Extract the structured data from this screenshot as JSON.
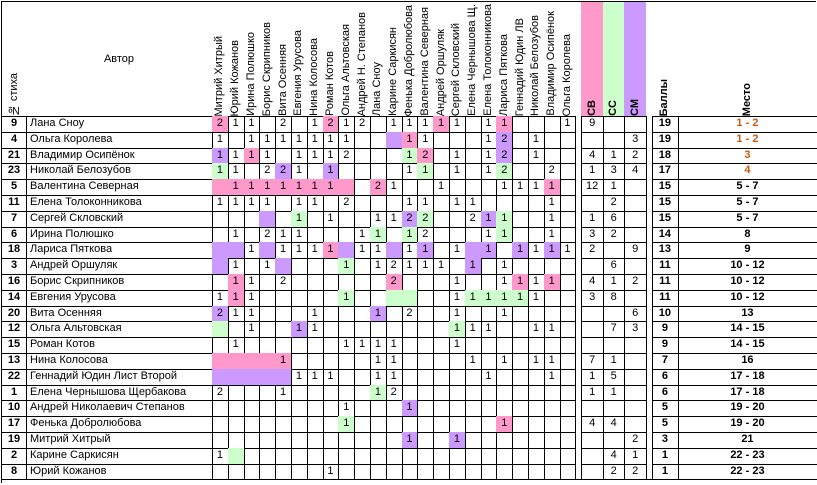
{
  "header": {
    "num": "№ стиха",
    "author": "Автор",
    "judges": [
      "Митрий Хитрый",
      "Юрий Кожанов",
      "Ирина Полюшко",
      "Борис Скрипников",
      "Вита Осенняя",
      "Евгения Урусова",
      "Нина Колосова",
      "Роман Котов",
      "Ольга Альтовская",
      "Андрей Н. Степанов",
      "Лана Сноу",
      "Карине Саркисян",
      "Фенька Добролюбова",
      "Валентина Северная",
      "Андрей Оршуляк",
      "Сергей Скловский",
      "Елена Чернышова Щ.",
      "Елена Толоконникова",
      "Лариса Пяткова",
      "Геннадий Юдин ЛВ",
      "Николай Белозубов",
      "Владимир Осипёнок",
      "Ольга Королева"
    ],
    "sv": "СВ",
    "ss": "СС",
    "sm": "СМ",
    "score": "Баллы",
    "place": "Место"
  },
  "colors": {
    "pink": "#ff99cc",
    "green": "#ccffcc",
    "purple": "#cc99ff",
    "place_top": "#c55a11"
  },
  "rows": [
    {
      "num": "9",
      "name": "Лана Сноу",
      "v": [
        "2",
        "1",
        "1",
        "",
        "2",
        "",
        "1",
        "2",
        "1",
        "2",
        "",
        "1",
        "1",
        "1",
        "1",
        "1",
        "",
        "1",
        "1",
        "",
        "",
        "",
        "1"
      ],
      "c": [
        "p",
        "",
        "",
        "",
        "",
        "",
        "",
        "p",
        "",
        "",
        "",
        "",
        "",
        "",
        "p",
        "",
        "",
        "",
        "p",
        "",
        "",
        "",
        ""
      ],
      "sv": "9",
      "ss": "",
      "sm": "",
      "score": "19",
      "place": "1 - 2",
      "pc": "top"
    },
    {
      "num": "4",
      "name": "Ольга Королева",
      "v": [
        "1",
        "",
        "1",
        "1",
        "1",
        "1",
        "1",
        "1",
        "1",
        "",
        "",
        "",
        "1",
        "1",
        "",
        "",
        "",
        "1",
        "2",
        "",
        "1",
        "",
        ""
      ],
      "c": [
        "",
        "",
        "",
        "",
        "",
        "",
        "",
        "",
        "",
        "",
        "",
        "u",
        "p",
        "",
        "",
        "",
        "",
        "",
        "u",
        "",
        "",
        "",
        ""
      ],
      "sv": "",
      "ss": "",
      "sm": "3",
      "score": "19",
      "place": "1 - 2",
      "pc": "top"
    },
    {
      "num": "21",
      "name": "Владимир Осипёнок",
      "v": [
        "1",
        "1",
        "1",
        "1",
        "",
        "1",
        "1",
        "1",
        "2",
        "",
        "",
        "",
        "1",
        "2",
        "",
        "1",
        "",
        "1",
        "2",
        "",
        "1",
        "",
        ""
      ],
      "c": [
        "u",
        "",
        "p",
        "",
        "",
        "",
        "",
        "",
        "",
        "",
        "",
        "",
        "g",
        "p",
        "",
        "",
        "",
        "",
        "u",
        "",
        "",
        "",
        ""
      ],
      "sv": "4",
      "ss": "1",
      "sm": "2",
      "score": "18",
      "place": "3",
      "pc": "top"
    },
    {
      "num": "23",
      "name": "Николай Белозубов",
      "v": [
        "1",
        "1",
        "",
        "2",
        "2",
        "1",
        "",
        "1",
        "",
        "",
        "",
        "",
        "1",
        "1",
        "",
        "1",
        "",
        "1",
        "2",
        "",
        "",
        "2",
        ""
      ],
      "c": [
        "g",
        "",
        "",
        "",
        "u",
        "",
        "",
        "u",
        "",
        "",
        "",
        "",
        "",
        "g",
        "",
        "",
        "",
        "",
        "g",
        "",
        "",
        "",
        ""
      ],
      "sv": "1",
      "ss": "3",
      "sm": "4",
      "score": "17",
      "place": "4",
      "pc": "top"
    },
    {
      "num": "5",
      "name": "Валентина Северная",
      "v": [
        "",
        "1",
        "1",
        "1",
        "1",
        "1",
        "1",
        "1",
        "",
        "",
        "2",
        "1",
        "",
        "",
        "1",
        "",
        "",
        "",
        "1",
        "1",
        "1",
        "1",
        ""
      ],
      "c": [
        "p",
        "p",
        "p",
        "p",
        "p",
        "p",
        "p",
        "p",
        "p",
        "",
        "p",
        "",
        "",
        "",
        "",
        "",
        "",
        "",
        "",
        "",
        "",
        "p",
        ""
      ],
      "sv": "12",
      "ss": "1",
      "sm": "",
      "score": "15",
      "place": "5 - 7",
      "pc": ""
    },
    {
      "num": "11",
      "name": "Елена Толоконникова",
      "v": [
        "1",
        "1",
        "1",
        "1",
        "",
        "1",
        "1",
        "",
        "2",
        "",
        "",
        "",
        "1",
        "1",
        "",
        "1",
        "1",
        "",
        "",
        "",
        "",
        "1",
        ""
      ],
      "c": [
        "",
        "",
        "",
        "",
        "",
        "",
        "",
        "",
        "",
        "",
        "",
        "",
        "",
        "",
        "",
        "",
        "",
        "",
        "",
        "",
        "",
        "",
        ""
      ],
      "sv": "",
      "ss": "2",
      "sm": "",
      "score": "15",
      "place": "5 - 7",
      "pc": ""
    },
    {
      "num": "7",
      "name": "Сергей Скловский",
      "v": [
        "",
        "",
        "",
        "",
        "",
        "1",
        "",
        "1",
        "",
        "",
        "1",
        "1",
        "2",
        "2",
        "",
        "",
        "2",
        "1",
        "1",
        "",
        "",
        "1",
        ""
      ],
      "c": [
        "",
        "",
        "",
        "u",
        "",
        "g",
        "",
        "",
        "",
        "",
        "",
        "",
        "u",
        "g",
        "",
        "",
        "",
        "u",
        "g",
        "",
        "",
        "",
        ""
      ],
      "sv": "1",
      "ss": "6",
      "sm": "",
      "score": "15",
      "place": "5 - 7",
      "pc": ""
    },
    {
      "num": "6",
      "name": "Ирина Полюшко",
      "v": [
        "",
        "1",
        "",
        "2",
        "1",
        "1",
        "",
        "",
        "",
        "1",
        "1",
        "",
        "1",
        "2",
        "",
        "",
        "",
        "1",
        "1",
        "",
        "",
        "1",
        ""
      ],
      "c": [
        "",
        "",
        "",
        "",
        "",
        "",
        "",
        "",
        "",
        "",
        "g",
        "",
        "g",
        "",
        "",
        "",
        "",
        "",
        "g",
        "",
        "",
        "",
        ""
      ],
      "sv": "3",
      "ss": "2",
      "sm": "",
      "score": "14",
      "place": "8",
      "pc": ""
    },
    {
      "num": "18",
      "name": "Лариса Пяткова",
      "v": [
        "",
        "",
        "1",
        "",
        "1",
        "1",
        "1",
        "1",
        "",
        "1",
        "1",
        "",
        "1",
        "1",
        "",
        "1",
        "",
        "1",
        "",
        "1",
        "1",
        "1",
        "1"
      ],
      "c": [
        "u",
        "u",
        "",
        "u",
        "",
        "",
        "",
        "p",
        "u",
        "",
        "",
        "u",
        "",
        "u",
        "",
        "",
        "u",
        "u",
        "",
        "u",
        "",
        "u",
        ""
      ],
      "sv": "2",
      "ss": "",
      "sm": "9",
      "score": "13",
      "place": "9",
      "pc": ""
    },
    {
      "num": "3",
      "name": "Андрей Оршуляк",
      "v": [
        "",
        "1",
        "",
        "1",
        "",
        "",
        "",
        "",
        "1",
        "",
        "1",
        "2",
        "1",
        "1",
        "1",
        "",
        "1",
        "",
        "1",
        "",
        "",
        "",
        ""
      ],
      "c": [
        "u",
        "",
        "",
        "",
        "u",
        "",
        "",
        "",
        "g",
        "",
        "",
        "",
        "",
        "",
        "",
        "",
        "u",
        "",
        "",
        "",
        "",
        "",
        ""
      ],
      "sv": "",
      "ss": "6",
      "sm": "",
      "score": "11",
      "place": "10 - 12",
      "pc": ""
    },
    {
      "num": "16",
      "name": "Борис Скрипников",
      "v": [
        "",
        "1",
        "1",
        "",
        "2",
        "",
        "",
        "",
        "",
        "",
        "",
        "2",
        "",
        "",
        "",
        "1",
        "",
        "",
        "1",
        "1",
        "1",
        "1",
        ""
      ],
      "c": [
        "",
        "p",
        "",
        "",
        "",
        "",
        "",
        "",
        "",
        "",
        "",
        "p",
        "",
        "",
        "",
        "",
        "",
        "",
        "",
        "p",
        "",
        "p",
        ""
      ],
      "sv": "4",
      "ss": "1",
      "sm": "2",
      "score": "11",
      "place": "10 - 12",
      "pc": ""
    },
    {
      "num": "14",
      "name": "Евгения Урусова",
      "v": [
        "1",
        "1",
        "1",
        "",
        "",
        "",
        "",
        "",
        "1",
        "",
        "",
        "",
        "",
        "",
        "",
        "1",
        "1",
        "1",
        "1",
        "1",
        "1",
        "",
        ""
      ],
      "c": [
        "",
        "p",
        "",
        "",
        "",
        "",
        "",
        "",
        "g",
        "",
        "",
        "g",
        "g",
        "",
        "",
        "",
        "g",
        "g",
        "g",
        "g",
        "",
        "",
        ""
      ],
      "sv": "3",
      "ss": "8",
      "sm": "",
      "score": "11",
      "place": "10 - 12",
      "pc": ""
    },
    {
      "num": "20",
      "name": "Вита Осенняя",
      "v": [
        "2",
        "1",
        "1",
        "",
        "",
        "",
        "1",
        "",
        "",
        "",
        "1",
        "",
        "2",
        "",
        "",
        "1",
        "",
        "",
        "1",
        "",
        "",
        "",
        ""
      ],
      "c": [
        "u",
        "",
        "",
        "",
        "",
        "",
        "",
        "",
        "",
        "",
        "u",
        "",
        "",
        "",
        "",
        "",
        "",
        "",
        "",
        "",
        "",
        "",
        ""
      ],
      "sv": "",
      "ss": "",
      "sm": "6",
      "score": "10",
      "place": "13",
      "pc": ""
    },
    {
      "num": "12",
      "name": "Ольга Альтовская",
      "v": [
        "",
        "",
        "1",
        "",
        "",
        "1",
        "1",
        "",
        "",
        "",
        "",
        "",
        "",
        "",
        "",
        "1",
        "1",
        "1",
        "",
        "",
        "1",
        "1",
        ""
      ],
      "c": [
        "g",
        "",
        "",
        "",
        "",
        "u",
        "",
        "",
        "",
        "",
        "",
        "",
        "",
        "",
        "",
        "g",
        "",
        "",
        "",
        "",
        "",
        "",
        ""
      ],
      "sv": "",
      "ss": "7",
      "sm": "3",
      "score": "9",
      "place": "14 - 15",
      "pc": ""
    },
    {
      "num": "15",
      "name": "Роман Котов",
      "v": [
        "",
        "1",
        "",
        "",
        "",
        "",
        "",
        "",
        "1",
        "1",
        "1",
        "1",
        "",
        "",
        "",
        "1",
        "",
        "",
        "",
        "",
        "",
        "",
        ""
      ],
      "c": [
        "",
        "",
        "",
        "",
        "",
        "",
        "",
        "",
        "",
        "",
        "",
        "",
        "",
        "",
        "",
        "",
        "",
        "",
        "",
        "",
        "",
        "",
        ""
      ],
      "sv": "",
      "ss": "",
      "sm": "",
      "score": "9",
      "place": "14 - 15",
      "pc": ""
    },
    {
      "num": "13",
      "name": "Нина Колосова",
      "v": [
        "",
        "",
        "",
        "",
        "1",
        "",
        "",
        "",
        "",
        "",
        "1",
        "1",
        "",
        "",
        "",
        "",
        "1",
        "",
        "1",
        "",
        "1",
        "1",
        ""
      ],
      "c": [
        "p",
        "p",
        "p",
        "p",
        "p",
        "",
        "",
        "",
        "",
        "",
        "",
        "",
        "",
        "",
        "",
        "",
        "",
        "",
        "",
        "",
        "",
        "",
        ""
      ],
      "sv": "7",
      "ss": "1",
      "sm": "",
      "score": "7",
      "place": "16",
      "pc": ""
    },
    {
      "num": "22",
      "name": "Геннадий Юдин Лист Второй",
      "v": [
        "",
        "",
        "",
        "",
        "",
        "1",
        "1",
        "1",
        "",
        "",
        "1",
        "1",
        "",
        "",
        "",
        "",
        "",
        "1",
        "",
        "",
        "",
        "1",
        ""
      ],
      "c": [
        "u",
        "u",
        "u",
        "u",
        "u",
        "",
        "",
        "",
        "",
        "",
        "",
        "",
        "",
        "",
        "",
        "",
        "",
        "",
        "",
        "",
        "",
        "",
        ""
      ],
      "sv": "1",
      "ss": "5",
      "sm": "",
      "score": "6",
      "place": "17 - 18",
      "pc": ""
    },
    {
      "num": "1",
      "name": "Елена Чернышова Щербакова",
      "v": [
        "2",
        "",
        "",
        "",
        "1",
        "",
        "",
        "",
        "",
        "",
        "1",
        "2",
        "",
        "",
        "",
        "",
        "",
        "",
        "",
        "",
        "",
        "",
        ""
      ],
      "c": [
        "",
        "",
        "",
        "",
        "",
        "",
        "",
        "",
        "",
        "",
        "g",
        "",
        "",
        "",
        "",
        "",
        "",
        "",
        "",
        "",
        "",
        "",
        ""
      ],
      "sv": "1",
      "ss": "1",
      "sm": "",
      "score": "6",
      "place": "17 - 18",
      "pc": ""
    },
    {
      "num": "10",
      "name": "Андрей Николаевич Степанов",
      "v": [
        "",
        "",
        "",
        "",
        "",
        "",
        "",
        "",
        "1",
        "",
        "",
        "",
        "1",
        "",
        "",
        "",
        "",
        "",
        "",
        "",
        "",
        "",
        ""
      ],
      "c": [
        "",
        "",
        "",
        "",
        "",
        "",
        "",
        "",
        "",
        "",
        "",
        "",
        "u",
        "",
        "",
        "",
        "",
        "",
        "",
        "",
        "",
        "",
        ""
      ],
      "sv": "",
      "ss": "",
      "sm": "",
      "score": "5",
      "place": "19 - 20",
      "pc": ""
    },
    {
      "num": "17",
      "name": "Фенька Добролюбова",
      "v": [
        "",
        "",
        "",
        "",
        "",
        "",
        "",
        "",
        "1",
        "",
        "",
        "",
        "",
        "",
        "",
        "",
        "",
        "",
        "1",
        "",
        "",
        "",
        ""
      ],
      "c": [
        "",
        "",
        "",
        "",
        "",
        "",
        "",
        "",
        "g",
        "",
        "",
        "",
        "",
        "",
        "",
        "",
        "",
        "",
        "p",
        "",
        "",
        "",
        ""
      ],
      "sv": "4",
      "ss": "4",
      "sm": "",
      "score": "5",
      "place": "19 - 20",
      "pc": ""
    },
    {
      "num": "19",
      "name": "Митрий Хитрый",
      "v": [
        "",
        "",
        "",
        "",
        "",
        "",
        "",
        "",
        "",
        "",
        "",
        "",
        "1",
        "",
        "",
        "1",
        "",
        "",
        "",
        "",
        "",
        "",
        ""
      ],
      "c": [
        "",
        "",
        "",
        "",
        "",
        "",
        "",
        "",
        "",
        "",
        "",
        "",
        "u",
        "",
        "",
        "u",
        "",
        "",
        "",
        "",
        "",
        "",
        ""
      ],
      "sv": "",
      "ss": "",
      "sm": "2",
      "score": "3",
      "place": "21",
      "pc": ""
    },
    {
      "num": "2",
      "name": "Карине Саркисян",
      "v": [
        "1",
        "",
        "",
        "",
        "",
        "",
        "",
        "",
        "",
        "",
        "",
        "",
        "",
        "",
        "",
        "",
        "",
        "",
        "",
        "",
        "",
        "",
        ""
      ],
      "c": [
        "",
        "g",
        "",
        "",
        "",
        "",
        "",
        "",
        "",
        "",
        "",
        "",
        "",
        "",
        "",
        "",
        "",
        "",
        "",
        "",
        "",
        "",
        ""
      ],
      "sv": "",
      "ss": "4",
      "sm": "1",
      "score": "1",
      "place": "22 - 23",
      "pc": ""
    },
    {
      "num": "8",
      "name": "Юрий Кожанов",
      "v": [
        "",
        "",
        "",
        "",
        "",
        "",
        "",
        "1",
        "",
        "",
        "",
        "",
        "",
        "",
        "",
        "",
        "",
        "",
        "",
        "",
        "",
        "",
        ""
      ],
      "c": [
        "",
        "",
        "",
        "",
        "",
        "",
        "",
        "",
        "",
        "",
        "",
        "",
        "",
        "",
        "",
        "",
        "",
        "",
        "",
        "",
        "",
        "",
        ""
      ],
      "sv": "",
      "ss": "2",
      "sm": "2",
      "score": "1",
      "place": "22 - 23",
      "pc": ""
    }
  ]
}
